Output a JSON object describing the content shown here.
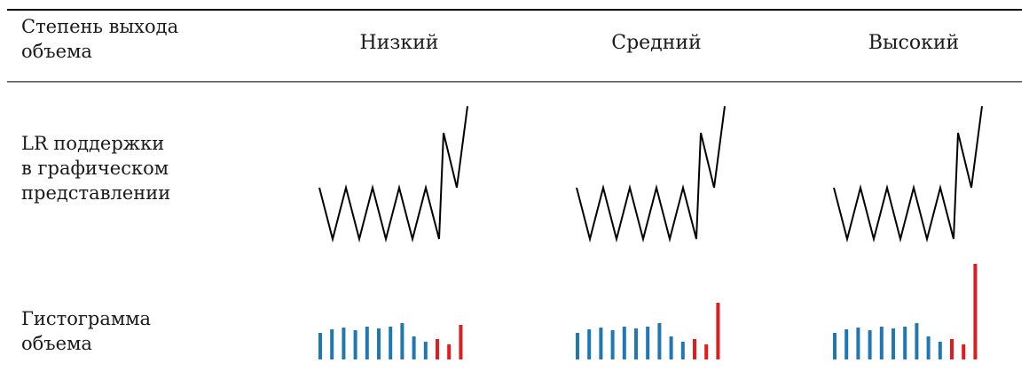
{
  "table": {
    "header_label": [
      "Степень выхода",
      "объема"
    ],
    "columns": [
      "Низкий",
      "Средний",
      "Высокий"
    ],
    "row_zigzag_label": [
      "LR поддержки",
      "в графическом",
      "представлении"
    ],
    "row_histogram_label": [
      "Гистограмма",
      "объема"
    ]
  },
  "colors": {
    "normal_bar": "#1f77b4",
    "breakout_bar": "#e41a1c",
    "zigzag_line": "#000000"
  },
  "diagrams": [
    {
      "level": "Низкий",
      "histogram": {
        "values": [
          30,
          34,
          36,
          33,
          37,
          35,
          37,
          41,
          26,
          20,
          23,
          17,
          39
        ],
        "colors": [
          "blue",
          "blue",
          "blue",
          "blue",
          "blue",
          "blue",
          "blue",
          "blue",
          "blue",
          "blue",
          "red",
          "red",
          "red"
        ]
      }
    },
    {
      "level": "Средний",
      "histogram": {
        "values": [
          30,
          34,
          36,
          33,
          37,
          35,
          37,
          41,
          26,
          20,
          23,
          17,
          64
        ],
        "colors": [
          "blue",
          "blue",
          "blue",
          "blue",
          "blue",
          "blue",
          "blue",
          "blue",
          "blue",
          "blue",
          "red",
          "red",
          "red"
        ]
      }
    },
    {
      "level": "Высокий",
      "histogram": {
        "values": [
          30,
          34,
          36,
          33,
          37,
          35,
          37,
          41,
          26,
          20,
          23,
          17,
          108
        ],
        "colors": [
          "blue",
          "blue",
          "blue",
          "blue",
          "blue",
          "blue",
          "blue",
          "blue",
          "blue",
          "blue",
          "red",
          "red",
          "red"
        ]
      }
    }
  ]
}
